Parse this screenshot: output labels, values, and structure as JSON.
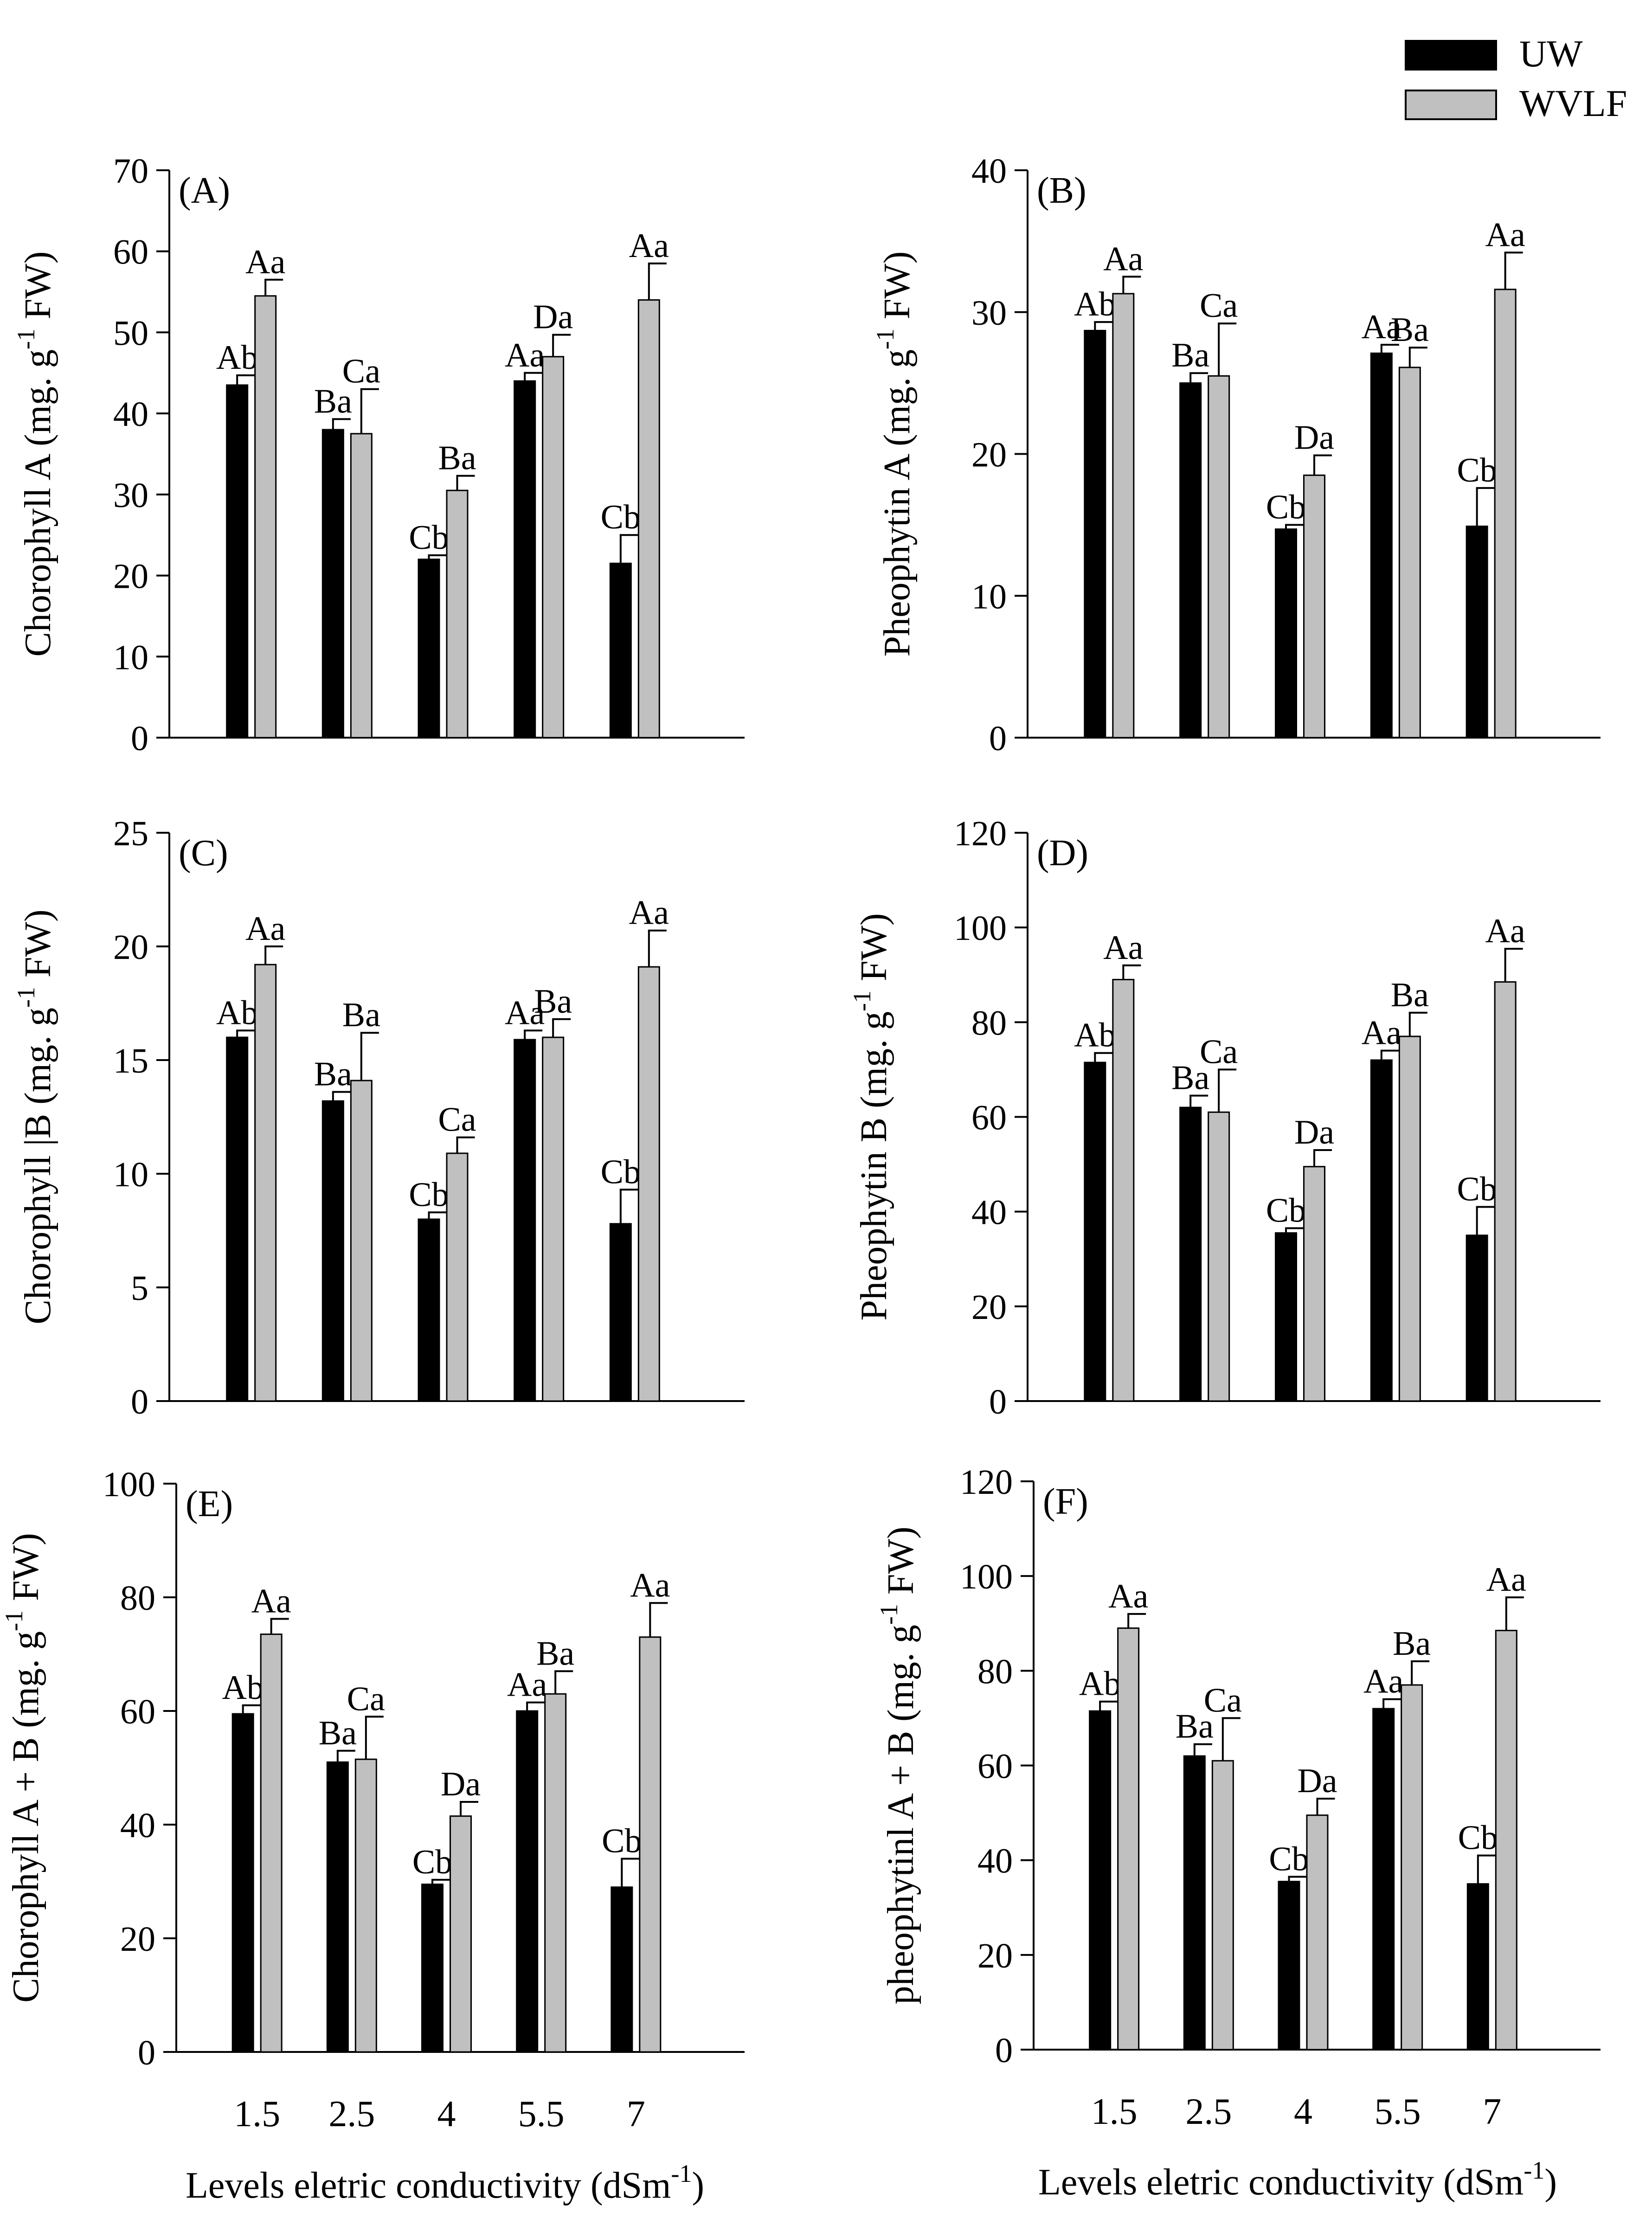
{
  "legend": {
    "position": "top-right",
    "entries": [
      {
        "name": "UW",
        "color": "#000000"
      },
      {
        "name": "WVLF",
        "color": "#c0c0c0"
      }
    ]
  },
  "x_axis": {
    "label": "Levels eletric conductivity (dSm",
    "label_exp": "-1",
    "label_close": ")"
  },
  "chart_data": [
    {
      "type": "bar",
      "panel": "(A)",
      "ylabel": "Chorophyll A (mg. g",
      "ylabel_exp": "-1",
      "ylabel_end": " FW)",
      "ylim": [
        0,
        70
      ],
      "yticks": [
        0,
        10,
        20,
        30,
        40,
        50,
        60,
        70
      ],
      "categories": [
        "1.5",
        "2.5",
        "4",
        "5.5",
        "7"
      ],
      "series": [
        {
          "name": "UW",
          "values": [
            43.5,
            38,
            22,
            44,
            21.5
          ],
          "errors": [
            1.2,
            1.3,
            0.5,
            1.0,
            3.5
          ],
          "labels": [
            "Ab",
            "Ba",
            "Cb",
            "Aa",
            "Cb"
          ]
        },
        {
          "name": "WVLF",
          "values": [
            54.5,
            37.5,
            30.5,
            47,
            54
          ],
          "errors": [
            2.0,
            5.5,
            1.8,
            2.7,
            4.5
          ],
          "labels": [
            "Aa",
            "Ca",
            "Ba",
            "Da",
            "Aa"
          ]
        }
      ]
    },
    {
      "type": "bar",
      "panel": "(B)",
      "ylabel": "Pheophytin A  (mg. g",
      "ylabel_exp": "-1",
      "ylabel_end": " FW)",
      "ylim": [
        0,
        40
      ],
      "yticks": [
        0,
        10,
        20,
        30,
        40
      ],
      "categories": [
        "1.5",
        "2.5",
        "4",
        "5.5",
        "7"
      ],
      "series": [
        {
          "name": "UW",
          "values": [
            28.7,
            25,
            14.7,
            27.1,
            14.9
          ],
          "errors": [
            0.6,
            0.7,
            0.3,
            0.6,
            2.7
          ],
          "labels": [
            "Ab",
            "Ba",
            "Cb",
            "Aa",
            "Cb"
          ]
        },
        {
          "name": "WVLF",
          "values": [
            31.3,
            25.5,
            18.5,
            26.1,
            31.6
          ],
          "errors": [
            1.2,
            3.7,
            1.4,
            1.4,
            2.6
          ],
          "labels": [
            "Aa",
            "Ca",
            "Da",
            "Ba",
            "Aa"
          ]
        }
      ]
    },
    {
      "type": "bar",
      "panel": "(C)",
      "ylabel": "Chorophyll |B (mg. g",
      "ylabel_exp": "-1",
      "ylabel_end": " FW)",
      "ylim": [
        0,
        25
      ],
      "yticks": [
        0,
        5,
        10,
        15,
        20,
        25
      ],
      "categories": [
        "1.5",
        "2.5",
        "4",
        "5.5",
        "7"
      ],
      "series": [
        {
          "name": "UW",
          "values": [
            16,
            13.2,
            8,
            15.9,
            7.8
          ],
          "errors": [
            0.3,
            0.4,
            0.3,
            0.4,
            1.5
          ],
          "labels": [
            "Ab",
            "Ba",
            "Cb",
            "Aa",
            "Cb"
          ]
        },
        {
          "name": "WVLF",
          "values": [
            19.2,
            14.1,
            10.9,
            16,
            19.1
          ],
          "errors": [
            0.8,
            2.1,
            0.7,
            0.8,
            1.6
          ],
          "labels": [
            "Aa",
            "Ba",
            "Ca",
            "Ba",
            "Aa"
          ]
        }
      ]
    },
    {
      "type": "bar",
      "panel": "(D)",
      "ylabel": "Pheophytin B (mg. g",
      "ylabel_exp": "-1",
      "ylabel_end": " FW)",
      "ylim": [
        0,
        120
      ],
      "yticks": [
        0,
        20,
        40,
        60,
        80,
        100,
        120
      ],
      "categories": [
        "1.5",
        "2.5",
        "4",
        "5.5",
        "7"
      ],
      "series": [
        {
          "name": "UW",
          "values": [
            71.5,
            62,
            35.5,
            72,
            35
          ],
          "errors": [
            2.0,
            2.5,
            1.0,
            2.0,
            6.0
          ],
          "labels": [
            "Ab",
            "Ba",
            "Cb",
            "Aa",
            "Cb"
          ]
        },
        {
          "name": "WVLF",
          "values": [
            89,
            61,
            49.5,
            77,
            88.5
          ],
          "errors": [
            3.0,
            9.0,
            3.5,
            5.0,
            7.0
          ],
          "labels": [
            "Aa",
            "Ca",
            "Da",
            "Ba",
            "Aa"
          ]
        }
      ]
    },
    {
      "type": "bar",
      "panel": "(E)",
      "ylabel": "Chorophyll A + B (mg. g",
      "ylabel_exp": "-1",
      "ylabel_end": " FW)",
      "ylim": [
        0,
        100
      ],
      "yticks": [
        0,
        20,
        40,
        60,
        80,
        100
      ],
      "categories": [
        "1.5",
        "2.5",
        "4",
        "5.5",
        "7"
      ],
      "series": [
        {
          "name": "UW",
          "values": [
            59.5,
            51,
            29.5,
            60,
            29
          ],
          "errors": [
            1.5,
            2.0,
            0.8,
            1.5,
            5.0
          ],
          "labels": [
            "Ab",
            "Ba",
            "Cb",
            "Aa",
            "Cb"
          ]
        },
        {
          "name": "WVLF",
          "values": [
            73.5,
            51.5,
            41.5,
            63,
            73
          ],
          "errors": [
            2.7,
            7.5,
            2.5,
            4.0,
            6.0
          ],
          "labels": [
            "Aa",
            "Ca",
            "Da",
            "Ba",
            "Aa"
          ]
        }
      ]
    },
    {
      "type": "bar",
      "panel": "(F)",
      "ylabel": "pheophytinl  A + B (mg. g",
      "ylabel_exp": "-1",
      "ylabel_end": " FW)",
      "ylim": [
        0,
        120
      ],
      "yticks": [
        0,
        20,
        40,
        60,
        80,
        100,
        120
      ],
      "categories": [
        "1.5",
        "2.5",
        "4",
        "5.5",
        "7"
      ],
      "series": [
        {
          "name": "UW",
          "values": [
            71.5,
            62,
            35.5,
            72,
            35
          ],
          "errors": [
            2.0,
            2.5,
            1.0,
            2.0,
            6.0
          ],
          "labels": [
            "Ab",
            "Ba",
            "Cb",
            "Aa",
            "Cb"
          ]
        },
        {
          "name": "WVLF",
          "values": [
            89,
            61,
            49.5,
            77,
            88.5
          ],
          "errors": [
            3.0,
            9.0,
            3.5,
            5.0,
            7.0
          ],
          "labels": [
            "Aa",
            "Ca",
            "Da",
            "Ba",
            "Aa"
          ]
        }
      ]
    }
  ]
}
